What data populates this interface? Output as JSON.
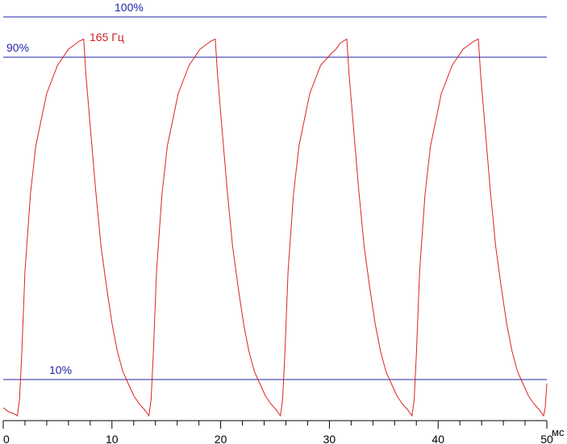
{
  "chart_data": {
    "type": "line",
    "title": "",
    "xlabel": "мс",
    "ylabel": "",
    "xlim": [
      0,
      50
    ],
    "ylim": [
      -0.01,
      1.09
    ],
    "x_ticks": [
      0,
      10,
      20,
      30,
      40,
      50
    ],
    "x_minor_step": 2,
    "grid": false,
    "reference_lines": [
      {
        "label": "100%",
        "value": 1.0
      },
      {
        "label": "90%",
        "value": 0.9
      },
      {
        "label": "10%",
        "value": 0.1
      }
    ],
    "series": [
      {
        "name": "165 Гц",
        "color": "#dd2222",
        "points": [
          [
            0.0,
            0.03
          ],
          [
            0.5,
            0.02
          ],
          [
            1.0,
            0.015
          ],
          [
            1.3,
            0.01
          ],
          [
            1.5,
            0.05
          ],
          [
            1.7,
            0.16
          ],
          [
            2.0,
            0.37
          ],
          [
            2.5,
            0.56
          ],
          [
            3.0,
            0.68
          ],
          [
            4.0,
            0.81
          ],
          [
            5.0,
            0.88
          ],
          [
            6.0,
            0.92
          ],
          [
            7.0,
            0.94
          ],
          [
            7.4,
            0.945
          ],
          [
            7.6,
            0.86
          ],
          [
            8.0,
            0.73
          ],
          [
            8.5,
            0.57
          ],
          [
            9.0,
            0.43
          ],
          [
            9.5,
            0.33
          ],
          [
            10.0,
            0.24
          ],
          [
            10.5,
            0.17
          ],
          [
            11.0,
            0.12
          ],
          [
            11.5,
            0.09
          ],
          [
            12.0,
            0.06
          ],
          [
            12.5,
            0.04
          ],
          [
            13.0,
            0.025
          ],
          [
            13.4,
            0.01
          ],
          [
            13.6,
            0.05
          ],
          [
            13.8,
            0.16
          ],
          [
            14.1,
            0.37
          ],
          [
            14.6,
            0.56
          ],
          [
            15.1,
            0.68
          ],
          [
            16.1,
            0.81
          ],
          [
            17.1,
            0.88
          ],
          [
            18.1,
            0.92
          ],
          [
            19.1,
            0.94
          ],
          [
            19.5,
            0.945
          ],
          [
            19.7,
            0.86
          ],
          [
            20.1,
            0.73
          ],
          [
            20.6,
            0.57
          ],
          [
            21.1,
            0.43
          ],
          [
            21.6,
            0.33
          ],
          [
            22.1,
            0.24
          ],
          [
            22.6,
            0.17
          ],
          [
            23.1,
            0.12
          ],
          [
            23.6,
            0.09
          ],
          [
            24.1,
            0.06
          ],
          [
            24.6,
            0.04
          ],
          [
            25.1,
            0.025
          ],
          [
            25.5,
            0.01
          ],
          [
            25.7,
            0.05
          ],
          [
            25.9,
            0.16
          ],
          [
            26.2,
            0.37
          ],
          [
            26.7,
            0.56
          ],
          [
            27.2,
            0.68
          ],
          [
            28.2,
            0.81
          ],
          [
            29.2,
            0.88
          ],
          [
            30.2,
            0.91
          ],
          [
            30.6,
            0.92
          ],
          [
            31.0,
            0.935
          ],
          [
            31.3,
            0.94
          ],
          [
            31.6,
            0.945
          ],
          [
            31.8,
            0.86
          ],
          [
            32.2,
            0.73
          ],
          [
            32.7,
            0.57
          ],
          [
            33.2,
            0.43
          ],
          [
            33.7,
            0.33
          ],
          [
            34.2,
            0.24
          ],
          [
            34.7,
            0.17
          ],
          [
            35.2,
            0.12
          ],
          [
            35.7,
            0.09
          ],
          [
            36.2,
            0.06
          ],
          [
            36.7,
            0.04
          ],
          [
            37.2,
            0.025
          ],
          [
            37.6,
            0.01
          ],
          [
            37.8,
            0.05
          ],
          [
            38.0,
            0.16
          ],
          [
            38.3,
            0.37
          ],
          [
            38.8,
            0.56
          ],
          [
            39.3,
            0.68
          ],
          [
            40.3,
            0.81
          ],
          [
            41.3,
            0.88
          ],
          [
            42.3,
            0.92
          ],
          [
            43.3,
            0.94
          ],
          [
            43.7,
            0.945
          ],
          [
            43.9,
            0.86
          ],
          [
            44.3,
            0.73
          ],
          [
            44.8,
            0.57
          ],
          [
            45.3,
            0.43
          ],
          [
            45.8,
            0.33
          ],
          [
            46.3,
            0.24
          ],
          [
            46.8,
            0.17
          ],
          [
            47.3,
            0.12
          ],
          [
            47.8,
            0.09
          ],
          [
            48.3,
            0.06
          ],
          [
            48.8,
            0.04
          ],
          [
            49.3,
            0.025
          ],
          [
            49.7,
            0.01
          ],
          [
            49.85,
            0.03
          ],
          [
            50.0,
            0.09
          ]
        ]
      }
    ]
  }
}
